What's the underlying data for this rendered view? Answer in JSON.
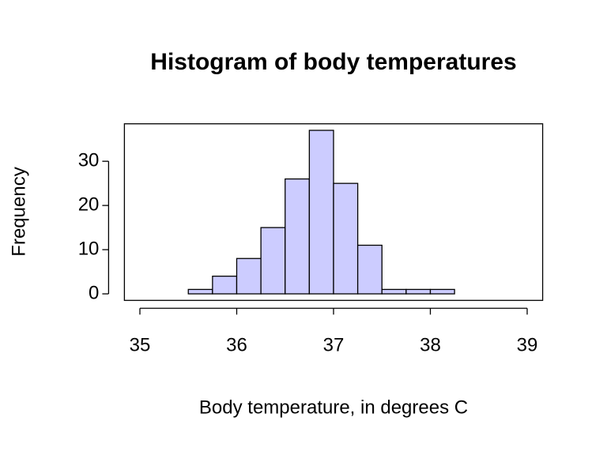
{
  "chart_data": {
    "type": "histogram",
    "title": "Histogram of body temperatures",
    "xlabel": "Body temperature, in degrees C",
    "ylabel": "Frequency",
    "bins": [
      35,
      35.25,
      35.5,
      35.75,
      36,
      36.25,
      36.5,
      36.75,
      37,
      37.25,
      37.5,
      37.75,
      38,
      38.25,
      38.5,
      38.75,
      39
    ],
    "values": [
      0,
      0,
      1,
      4,
      8,
      15,
      26,
      37,
      25,
      11,
      1,
      1,
      1,
      0,
      0,
      0
    ],
    "color": "#ccccff",
    "xlim": [
      35,
      39
    ],
    "xticks": [
      35,
      36,
      37,
      38,
      39
    ],
    "ylim": [
      0,
      37
    ],
    "yticks": [
      0,
      10,
      20,
      30
    ]
  }
}
